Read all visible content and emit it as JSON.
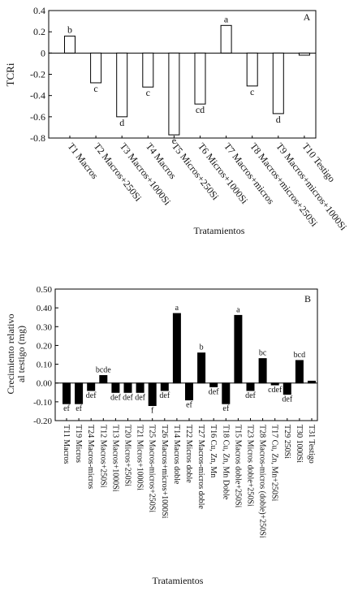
{
  "chart_data": [
    {
      "type": "bar",
      "panel_label": "A",
      "ylabel": "TCRi",
      "xlabel": "Tratamientos",
      "ylim": [
        -0.8,
        0.4
      ],
      "yticks": [
        "0.4",
        "0.2",
        "0",
        "-0.2",
        "-0.4",
        "-0.6",
        "-0.8"
      ],
      "ytick_values": [
        0.4,
        0.2,
        0,
        -0.2,
        -0.4,
        -0.6,
        -0.8
      ],
      "bar_fill": "#ffffff",
      "categories": [
        "T1 Macros",
        "T2 Macros+250Si",
        "T3 Macros+1000Si",
        "T4 Macros",
        "T5 Micros+250Si",
        "T6 Micros+1000Si",
        "T7 Macros+micros",
        "T8 Macros+micros+250Si",
        "T9 Macros+micros+1000Si",
        "T10 Testigo"
      ],
      "values": [
        0.16,
        -0.28,
        -0.6,
        -0.32,
        -0.77,
        -0.48,
        0.26,
        -0.31,
        -0.57,
        -0.02
      ],
      "letters": [
        "b",
        "c",
        "d",
        "c",
        "e",
        "cd",
        "a",
        "c",
        "d",
        ""
      ]
    },
    {
      "type": "bar",
      "panel_label": "B",
      "ylabel": "Crecimiento relativo al testigo (mg)",
      "ylabel_lines": [
        "Crecimiento relativo",
        "al testigo (mg)"
      ],
      "xlabel": "Tratamientos",
      "ylim": [
        -0.2,
        0.5
      ],
      "yticks": [
        "0.50",
        "0.40",
        "0.30",
        "0.20",
        "0.10",
        "0.00",
        "-0.10",
        "-0.20"
      ],
      "ytick_values": [
        0.5,
        0.4,
        0.3,
        0.2,
        0.1,
        0.0,
        -0.1,
        -0.2
      ],
      "bar_fill": "#000000",
      "categories": [
        "T11 Macros",
        "T19 Micros",
        "T24 Macros-micros",
        "T12 Macros+250Si",
        "T13 Macros+1000Si",
        "T20 Micros+250Si",
        "T21 Micros+1000Si",
        "T25 Macros-micros+250Si",
        "T26 Macros+micros+1000Si",
        "T14 Macros doble",
        "T22 Micros doble",
        "T27 Macros-micros doble",
        "T16 Cu, Zn, Mn",
        "T18 Cu, Zn, Mn Doble",
        "T15 Macros doble+250Si",
        "T23 Micros doble+250Si",
        "T28 Macros-micros (doble)+250Si",
        "T17 Cu, Zn, Mn+250Si",
        "T29 250Si",
        "T30 1000Si",
        "T31 Testigo"
      ],
      "values": [
        -0.11,
        -0.11,
        -0.04,
        0.04,
        -0.05,
        -0.05,
        -0.05,
        -0.12,
        -0.04,
        0.37,
        -0.09,
        0.16,
        -0.02,
        -0.11,
        0.36,
        -0.04,
        0.13,
        -0.01,
        -0.06,
        0.12,
        0.01
      ],
      "letters": [
        "ef",
        "ef",
        "def",
        "bcde",
        "def",
        "def",
        "def",
        "f",
        "def",
        "a",
        "ef",
        "b",
        "def",
        "ef",
        "a",
        "def",
        "bc",
        "cdef",
        "def",
        "bcd",
        ""
      ]
    }
  ]
}
